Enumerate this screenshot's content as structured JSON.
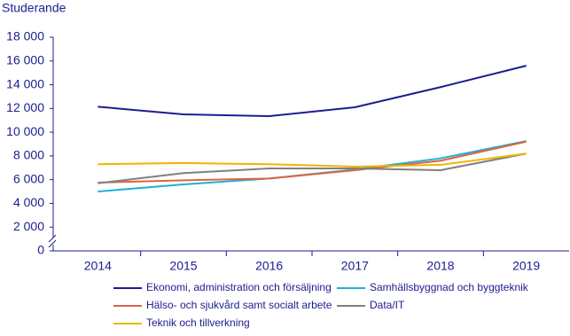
{
  "chart_data": {
    "type": "line",
    "y_label": "Studerande",
    "categories": [
      "2014",
      "2015",
      "2016",
      "2017",
      "2018",
      "2019"
    ],
    "ylim": [
      0,
      18000
    ],
    "yticks": [
      0,
      {
        "value": 2000,
        "label": "2 000"
      },
      {
        "value": 4000,
        "label": "4 000"
      },
      {
        "value": 6000,
        "label": "6 000"
      },
      {
        "value": 8000,
        "label": "8 000"
      },
      {
        "value": 10000,
        "label": "10 000"
      },
      {
        "value": 12000,
        "label": "12 000"
      },
      {
        "value": 14000,
        "label": "14 000"
      },
      {
        "value": 16000,
        "label": "16 000"
      },
      {
        "value": 18000,
        "label": "18 000"
      }
    ],
    "grid": false,
    "series": [
      {
        "name": "Ekonomi, administration och försäljning",
        "color": "#1c1c8f",
        "values": [
          12150,
          11500,
          11350,
          12100,
          13800,
          15600
        ]
      },
      {
        "name": "Samhällsbyggnad och byggteknik",
        "color": "#1fb0d8",
        "values": [
          5000,
          5600,
          6100,
          6850,
          7800,
          9250
        ]
      },
      {
        "name": "Hälso- och sjukvård samt socialt arbete",
        "color": "#e0623f",
        "values": [
          5750,
          5950,
          6100,
          6800,
          7600,
          9200
        ]
      },
      {
        "name": "Data/IT",
        "color": "#808080",
        "values": [
          5700,
          6550,
          6950,
          6950,
          6800,
          8200
        ]
      },
      {
        "name": "Teknik och tillverkning",
        "color": "#f2b400",
        "values": [
          7300,
          7400,
          7300,
          7100,
          7250,
          8200
        ]
      }
    ]
  }
}
